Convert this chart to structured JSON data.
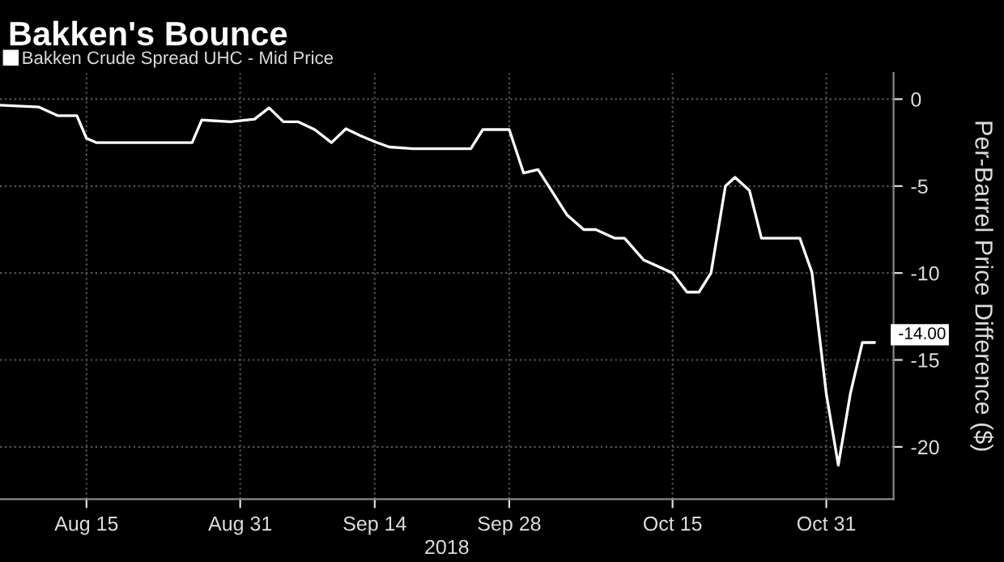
{
  "chart_data": {
    "type": "line",
    "title": "Bakken's Bounce",
    "xlabel": "2018",
    "ylabel": "Per-Barrel Price Difference ($)",
    "x": [
      "2018-08-06",
      "2018-08-10",
      "2018-08-12",
      "2018-08-14",
      "2018-08-15",
      "2018-08-16",
      "2018-08-26",
      "2018-08-27",
      "2018-08-30",
      "2018-09-01T12:00",
      "2018-09-03",
      "2018-09-04T12:00",
      "2018-09-06",
      "2018-09-07T18:00",
      "2018-09-09T12:00",
      "2018-09-11",
      "2018-09-12T12:00",
      "2018-09-14",
      "2018-09-15T12:00",
      "2018-09-18",
      "2018-09-24",
      "2018-09-25T06:00",
      "2018-09-28",
      "2018-09-29T12:00",
      "2018-10-01",
      "2018-10-04",
      "2018-10-05T18:00",
      "2018-10-07",
      "2018-10-09",
      "2018-10-10",
      "2018-10-12",
      "2018-10-15",
      "2018-10-16T12:00",
      "2018-10-17T18:00",
      "2018-10-19",
      "2018-10-20T12:00",
      "2018-10-21T12:00",
      "2018-10-23",
      "2018-10-24T06:00",
      "2018-10-28T06:00",
      "2018-10-29T12:00",
      "2018-10-31",
      "2018-11-01T06:00",
      "2018-11-02T12:00",
      "2018-11-03T18:00",
      "2018-11-05"
    ],
    "series": [
      {
        "name": "Bakken Crude Spread UHC - Mid Price",
        "color": "#ffffff",
        "values": [
          -0.35,
          -0.45,
          -0.95,
          -0.95,
          -2.25,
          -2.5,
          -2.5,
          -1.2,
          -1.3,
          -1.15,
          -0.5,
          -1.3,
          -1.3,
          -1.75,
          -2.5,
          -1.7,
          -2.1,
          -2.45,
          -2.75,
          -2.85,
          -2.85,
          -1.75,
          -1.75,
          -4.25,
          -4.05,
          -6.65,
          -7.5,
          -7.5,
          -8.0,
          -8.0,
          -9.25,
          -10.0,
          -11.1,
          -11.1,
          -10.0,
          -5.0,
          -4.5,
          -5.25,
          -8.0,
          -8.0,
          -9.95,
          -16.95,
          -21.05,
          -16.95,
          -14.0,
          -14.0
        ]
      }
    ],
    "annotations": [
      {
        "text": "-14.00",
        "x": "2018-11-05",
        "y": -14.0
      }
    ],
    "xlim": [
      "2018-08-06",
      "2018-11-07"
    ],
    "xticks": [
      {
        "value": "2018-08-15",
        "label": "Aug 15"
      },
      {
        "value": "2018-08-31",
        "label": "Aug 31"
      },
      {
        "value": "2018-09-14",
        "label": "Sep 14"
      },
      {
        "value": "2018-09-28",
        "label": "Sep 28"
      },
      {
        "value": "2018-10-15",
        "label": "Oct 15"
      },
      {
        "value": "2018-10-31",
        "label": "Oct 31"
      }
    ],
    "ylim": [
      -23,
      1.5
    ],
    "yticks": [
      0,
      -5,
      -10,
      -15,
      -20
    ],
    "grid": true,
    "legend": "top left",
    "marker": "none",
    "line_style": "solid"
  }
}
